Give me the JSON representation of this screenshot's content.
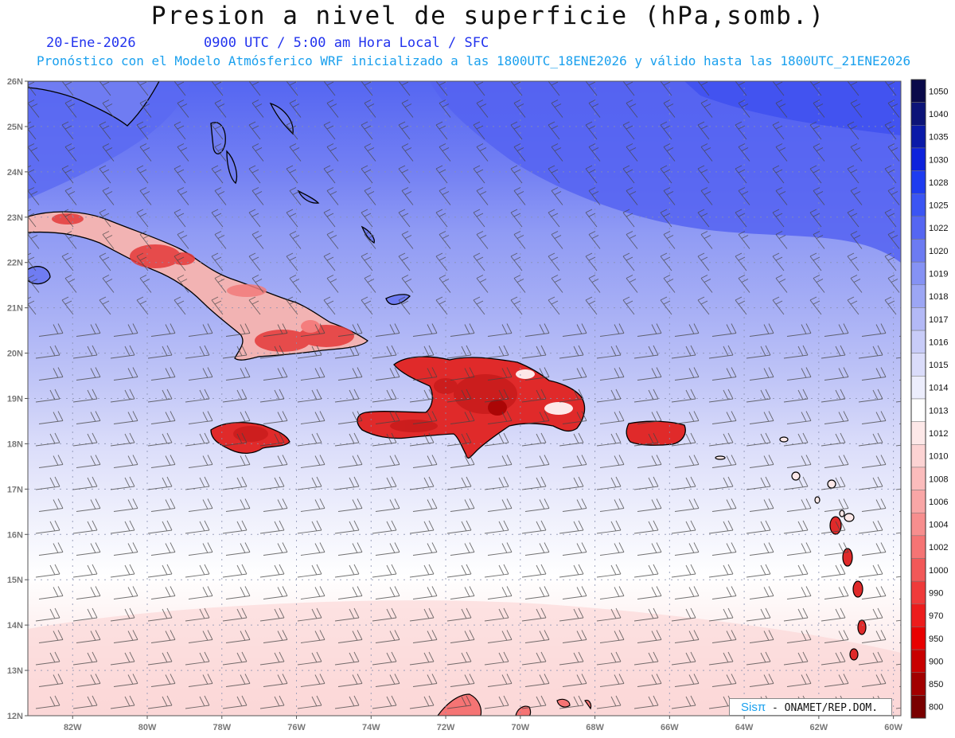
{
  "header": {
    "title": "Presion a nivel de superficie (hPa,somb.)",
    "date": "20-Ene-2026",
    "time_line": "0900 UTC / 5:00 am Hora Local / SFC",
    "forecast_line": "Pronóstico con el Modelo Atmósferico WRF inicializado a las 1800UTC_18ENE2026 y válido hasta las  1800UTC_21ENE2026"
  },
  "map": {
    "lat_labels": [
      "26N",
      "25N",
      "24N",
      "23N",
      "22N",
      "21N",
      "20N",
      "19N",
      "18N",
      "17N",
      "16N",
      "15N",
      "14N",
      "13N",
      "12N"
    ],
    "lon_labels": [
      "82W",
      "80W",
      "78W",
      "76W",
      "74W",
      "72W",
      "70W",
      "68W",
      "66W",
      "64W",
      "62W",
      "60W"
    ],
    "lat_range": [
      12,
      26
    ],
    "lon_range": [
      -83.2,
      -59.8
    ],
    "land_color": "#e02a2a",
    "coast_color": "#000000"
  },
  "colorbar": {
    "levels": [
      "1050",
      "1040",
      "1035",
      "1030",
      "1028",
      "1025",
      "1022",
      "1020",
      "1019",
      "1018",
      "1017",
      "1016",
      "1015",
      "1014",
      "1013",
      "1012",
      "1010",
      "1008",
      "1006",
      "1004",
      "1002",
      "1000",
      "990",
      "970",
      "950",
      "900",
      "850",
      "800"
    ],
    "colors": [
      "#0a0a4a",
      "#0c1478",
      "#0a1aa8",
      "#0d22dc",
      "#1e3cf0",
      "#3b55f3",
      "#5566f2",
      "#6c7bf2",
      "#8592f4",
      "#9ca6f4",
      "#b3b9f6",
      "#c8ccf8",
      "#dadcfa",
      "#ecedfc",
      "#ffffff",
      "#fde8e8",
      "#fcd3d3",
      "#fbbcbc",
      "#f9a6a6",
      "#f78e8e",
      "#f57474",
      "#f25858",
      "#ef3a3a",
      "#ec1c1c",
      "#e80000",
      "#c80000",
      "#a20000",
      "#7a0000"
    ]
  },
  "credit": {
    "logo": "Sisπ",
    "text": " - ONAMET/REP.DOM."
  }
}
